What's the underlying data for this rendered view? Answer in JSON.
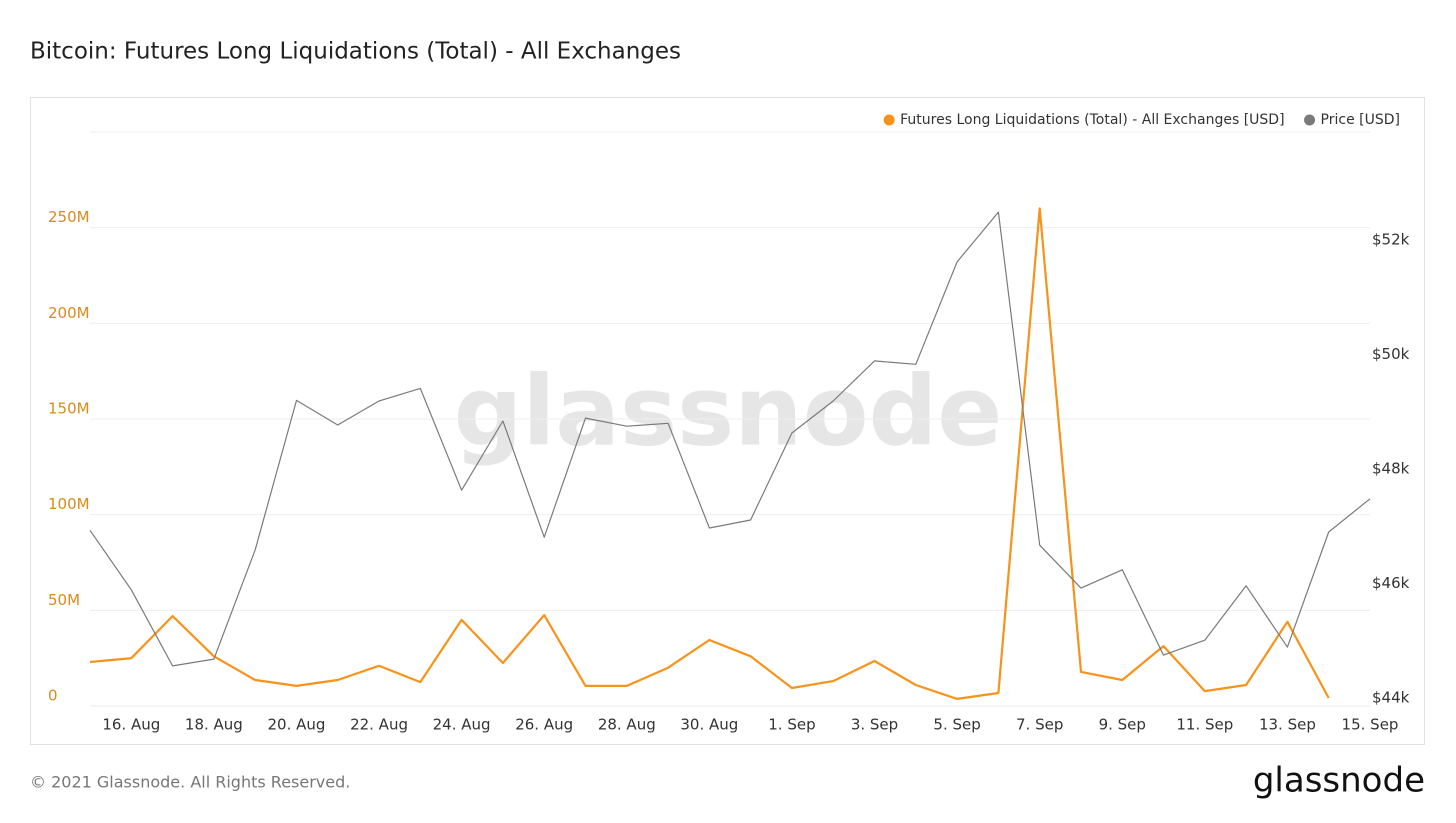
{
  "chart_data": {
    "type": "line",
    "title": "Bitcoin: Futures Long Liquidations (Total) - All Exchanges",
    "watermark": "glassnode",
    "copyright": "© 2021 Glassnode. All Rights Reserved.",
    "logo": "glassnode",
    "categories": [
      null,
      "16. Aug",
      null,
      "18. Aug",
      null,
      "20. Aug",
      null,
      "22. Aug",
      null,
      "24. Aug",
      null,
      "26. Aug",
      null,
      "28. Aug",
      null,
      "30. Aug",
      null,
      "1. Sep",
      null,
      "3. Sep",
      null,
      "5. Sep",
      null,
      "7. Sep",
      null,
      "9. Sep",
      null,
      "11. Sep",
      null,
      "13. Sep",
      null,
      "15. Sep"
    ],
    "series": [
      {
        "name": "Futures Long Liquidations (Total) - All Exchanges [USD]",
        "color": "#f7931a",
        "axis": "y",
        "values": [
          23000000,
          25000000,
          47000000,
          26000000,
          13600000,
          10500000,
          13600000,
          21000000,
          12500000,
          45000000,
          22500000,
          47500000,
          10500000,
          10500000,
          20000000,
          34500000,
          26000000,
          9400000,
          13000000,
          23500000,
          11000000,
          3700000,
          6800000,
          260000000,
          17800000,
          13600000,
          31300000,
          7800000,
          11000000,
          44000000,
          4200000,
          null
        ]
      },
      {
        "name": "Price [USD]",
        "color": "#7a7a7a",
        "axis": "y2",
        "values": [
          46930,
          45890,
          44560,
          44680,
          46590,
          49200,
          48770,
          49190,
          49410,
          47630,
          48840,
          46810,
          48890,
          48750,
          48800,
          46970,
          47110,
          48630,
          49190,
          49890,
          49830,
          51620,
          52490,
          46670,
          45920,
          46240,
          44750,
          45010,
          45960,
          44890,
          46900,
          47480
        ]
      }
    ],
    "ylim": [
      0,
      300000000
    ],
    "yticks": [
      0,
      {
        "value": 50000000,
        "label": "50M"
      },
      {
        "value": 100000000,
        "label": "100M"
      },
      {
        "value": 150000000,
        "label": "150M"
      },
      {
        "value": 200000000,
        "label": "200M"
      },
      {
        "value": 250000000,
        "label": "250M"
      }
    ],
    "y2lim": [
      43860,
      53890
    ],
    "y2ticks": [
      {
        "value": 44000,
        "label": "$44k"
      },
      {
        "value": 46000,
        "label": "$46k"
      },
      {
        "value": 48000,
        "label": "$48k"
      },
      {
        "value": 50000,
        "label": "$50k"
      },
      {
        "value": 52000,
        "label": "$52k"
      }
    ],
    "grid": true,
    "legend": "top-right"
  }
}
